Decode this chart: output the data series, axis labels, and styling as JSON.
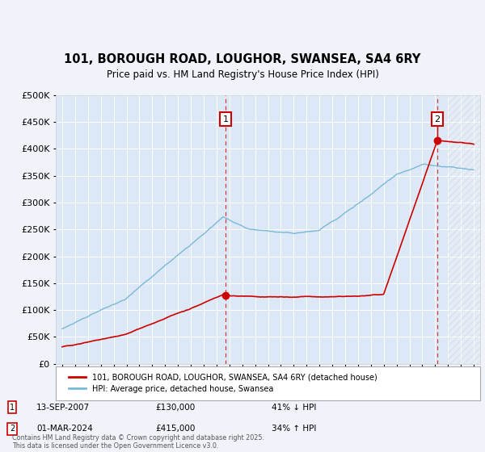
{
  "title": "101, BOROUGH ROAD, LOUGHOR, SWANSEA, SA4 6RY",
  "subtitle": "Price paid vs. HM Land Registry's House Price Index (HPI)",
  "ylim": [
    0,
    500000
  ],
  "yticks": [
    0,
    50000,
    100000,
    150000,
    200000,
    250000,
    300000,
    350000,
    400000,
    450000,
    500000
  ],
  "xlim_start": 1994.5,
  "xlim_end": 2027.5,
  "background_color": "#f0f4fa",
  "plot_bg": "#dce8f5",
  "grid_color": "#ffffff",
  "hpi_color": "#7ab8d9",
  "price_color": "#cc0000",
  "sale1_date": 2007.71,
  "sale1_price": 130000,
  "sale1_label": "1",
  "sale2_date": 2024.17,
  "sale2_price": 415000,
  "sale2_label": "2",
  "legend_line1": "101, BOROUGH ROAD, LOUGHOR, SWANSEA, SA4 6RY (detached house)",
  "legend_line2": "HPI: Average price, detached house, Swansea",
  "note1_label": "1",
  "note1_date": "13-SEP-2007",
  "note1_price": "£130,000",
  "note1_pct": "41% ↓ HPI",
  "note2_label": "2",
  "note2_date": "01-MAR-2024",
  "note2_price": "£415,000",
  "note2_pct": "34% ↑ HPI",
  "footer": "Contains HM Land Registry data © Crown copyright and database right 2025.\nThis data is licensed under the Open Government Licence v3.0."
}
